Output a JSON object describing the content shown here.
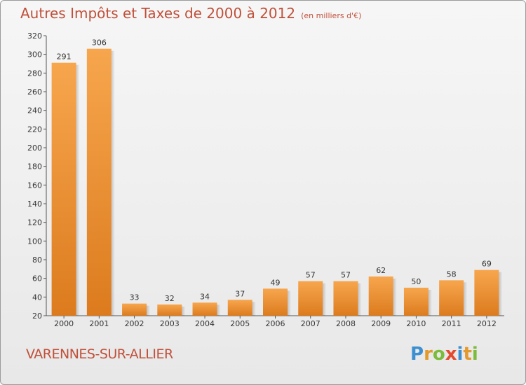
{
  "header": {
    "title": "Autres Impôts et Taxes de 2000 à 2012",
    "unit": "(en milliers d'€)"
  },
  "footer": {
    "place": "VARENNES-SUR-ALLIER",
    "brand": "Proxiti"
  },
  "colors": {
    "title": "#c0503a",
    "bar_light": "#f7a64e",
    "bar_dark": "#dc7b1e",
    "brand_letters": [
      "#3c8fd0",
      "#e39a2d",
      "#7cbc3c",
      "#e34a2e",
      "#3c8fd0",
      "#e39a2d",
      "#7cbc3c"
    ]
  },
  "chart_data": {
    "type": "bar",
    "title": "Autres Impôts et Taxes de 2000 à 2012",
    "subtitle": "(en milliers d'€)",
    "xlabel": "",
    "ylabel": "",
    "categories": [
      "2000",
      "2001",
      "2002",
      "2003",
      "2004",
      "2005",
      "2006",
      "2007",
      "2008",
      "2009",
      "2010",
      "2011",
      "2012"
    ],
    "values": [
      291,
      306,
      33,
      32,
      34,
      37,
      49,
      57,
      57,
      62,
      50,
      58,
      69
    ],
    "ylim": [
      20,
      320
    ],
    "yticks": [
      20,
      40,
      60,
      80,
      100,
      120,
      140,
      160,
      180,
      200,
      220,
      240,
      260,
      280,
      300,
      320
    ],
    "grid": false,
    "data_labels": true
  }
}
